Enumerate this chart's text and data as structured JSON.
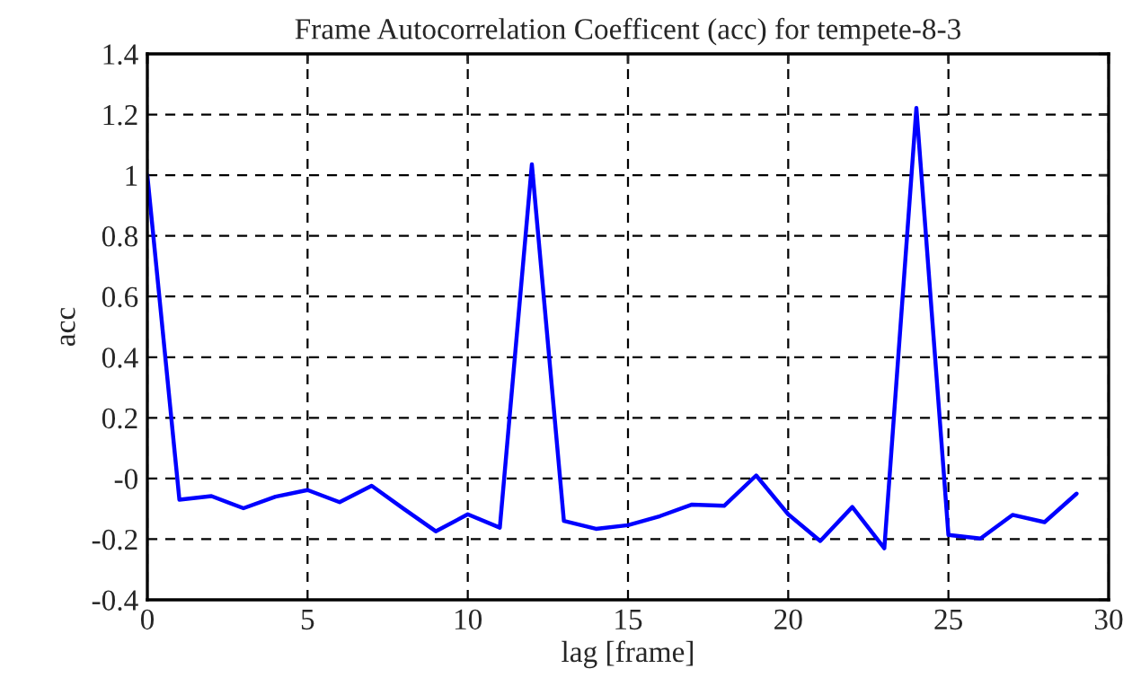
{
  "chart_data": {
    "type": "line",
    "title": "Frame Autocorrelation Coefficent (acc) for tempete-8-3",
    "xlabel": "lag [frame]",
    "ylabel": "acc",
    "x": [
      0,
      1,
      2,
      3,
      4,
      5,
      6,
      7,
      8,
      9,
      10,
      11,
      12,
      13,
      14,
      15,
      16,
      17,
      18,
      19,
      20,
      21,
      22,
      23,
      24,
      25,
      26,
      27,
      28,
      29
    ],
    "series": [
      {
        "color": "#0000ff",
        "values": [
          1.0,
          -0.07,
          -0.058,
          -0.098,
          -0.06,
          -0.038,
          -0.078,
          -0.024,
          -0.1,
          -0.174,
          -0.118,
          -0.162,
          1.036,
          -0.14,
          -0.166,
          -0.154,
          -0.124,
          -0.086,
          -0.09,
          0.01,
          -0.118,
          -0.206,
          -0.094,
          -0.23,
          1.222,
          -0.186,
          -0.198,
          -0.12,
          -0.144,
          -0.05
        ]
      }
    ],
    "xlim": [
      0,
      30
    ],
    "xticks": [
      0,
      5,
      10,
      15,
      20,
      25,
      30
    ],
    "ylim": [
      -0.4,
      1.4
    ],
    "yticks": [
      -0.4,
      -0.2,
      {
        "value": 0,
        "label": "-0"
      },
      0.2,
      0.4,
      0.6,
      0.8,
      1,
      1.2,
      1.4
    ],
    "grid": true,
    "line_style": "solid",
    "marker": "none"
  }
}
